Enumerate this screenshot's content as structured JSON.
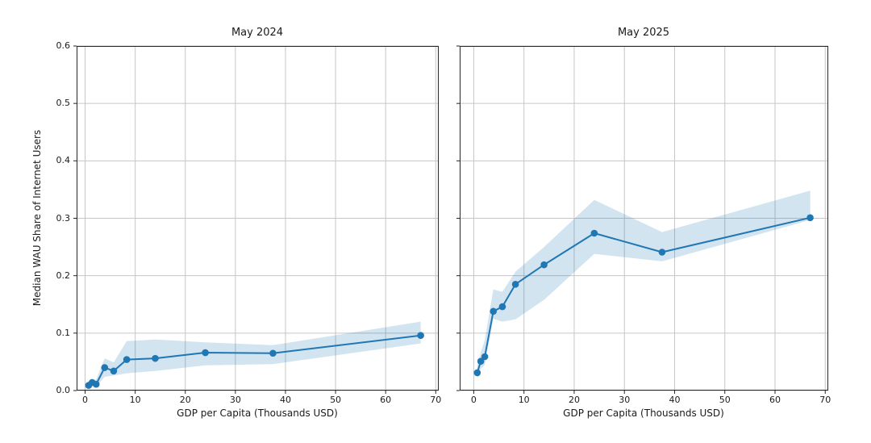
{
  "figure": {
    "ylabel": "Median WAU Share of Internet Users",
    "xlabel": "GDP per Capita (Thousands USD)"
  },
  "chart_data": [
    {
      "type": "line",
      "title": "May 2024",
      "xlabel": "GDP per Capita (Thousands USD)",
      "ylabel": "Median WAU Share of Internet Users",
      "x": [
        0.7,
        1.4,
        2.2,
        3.9,
        5.7,
        8.3,
        14,
        24,
        37.5,
        67
      ],
      "series": [
        {
          "name": "Median WAU share of internet users",
          "values": [
            0.009,
            0.014,
            0.011,
            0.04,
            0.034,
            0.054,
            0.056,
            0.066,
            0.065,
            0.096
          ]
        }
      ],
      "band": {
        "lower": [
          0.004,
          0.009,
          0.006,
          0.024,
          0.026,
          0.03,
          0.034,
          0.044,
          0.046,
          0.082
        ],
        "upper": [
          0.013,
          0.02,
          0.019,
          0.056,
          0.049,
          0.086,
          0.089,
          0.084,
          0.079,
          0.12
        ]
      },
      "xlim": [
        -1.7,
        70.6
      ],
      "ylim": [
        0,
        0.6
      ],
      "xticks": [
        0,
        10,
        20,
        30,
        40,
        50,
        60,
        70
      ],
      "yticks": [
        0.0,
        0.1,
        0.2,
        0.3,
        0.4,
        0.5,
        0.6
      ],
      "grid": true,
      "legend": "none",
      "line_color": "#1f77b4",
      "band_color": "#1f77b4",
      "band_alpha": 0.2
    },
    {
      "type": "line",
      "title": "May 2025",
      "xlabel": "GDP per Capita (Thousands USD)",
      "ylabel": "Median WAU Share of Internet Users",
      "x": [
        0.7,
        1.4,
        2.2,
        3.9,
        5.7,
        8.3,
        14,
        24,
        37.5,
        67
      ],
      "series": [
        {
          "name": "Median WAU share of internet users",
          "values": [
            0.031,
            0.051,
            0.059,
            0.138,
            0.146,
            0.185,
            0.219,
            0.274,
            0.241,
            0.301
          ]
        }
      ],
      "band": {
        "lower": [
          0.02,
          0.038,
          0.045,
          0.125,
          0.12,
          0.124,
          0.158,
          0.238,
          0.225,
          0.297
        ],
        "upper": [
          0.044,
          0.066,
          0.088,
          0.176,
          0.172,
          0.207,
          0.25,
          0.332,
          0.276,
          0.348
        ]
      },
      "xlim": [
        -2.8,
        70.6
      ],
      "ylim": [
        0,
        0.6
      ],
      "xticks": [
        0,
        10,
        20,
        30,
        40,
        50,
        60,
        70
      ],
      "yticks": [
        0.0,
        0.1,
        0.2,
        0.3,
        0.4,
        0.5,
        0.6
      ],
      "grid": true,
      "legend": "none",
      "line_color": "#1f77b4",
      "band_color": "#1f77b4",
      "band_alpha": 0.2
    }
  ],
  "style": {
    "grid_color": "#c6c6c6",
    "spine_color": "#262626",
    "text_color": "#1a1a1a",
    "background": "#ffffff"
  }
}
